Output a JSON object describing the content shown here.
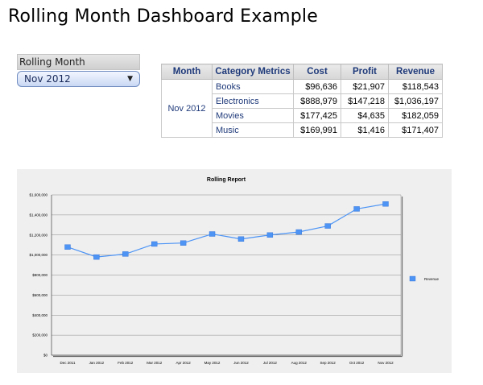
{
  "page": {
    "title": "Rolling Month Dashboard Example"
  },
  "selector": {
    "label": "Rolling Month",
    "value": "Nov 2012",
    "arrow": "▼"
  },
  "table": {
    "headers": [
      "Month",
      "Category Metrics",
      "Cost",
      "Profit",
      "Revenue"
    ],
    "month": "Nov 2012",
    "rows": [
      {
        "category": "Books",
        "cost": "$96,636",
        "profit": "$21,907",
        "revenue": "$118,543"
      },
      {
        "category": "Electronics",
        "cost": "$888,979",
        "profit": "$147,218",
        "revenue": "$1,036,197"
      },
      {
        "category": "Movies",
        "cost": "$177,425",
        "profit": "$4,635",
        "revenue": "$182,059"
      },
      {
        "category": "Music",
        "cost": "$169,991",
        "profit": "$1,416",
        "revenue": "$171,407"
      }
    ]
  },
  "colors": {
    "series": "#4d94f5",
    "header_text": "#1f3a7a",
    "chart_bg": "#efefef"
  },
  "chart_data": {
    "type": "line",
    "title": "Rolling Report",
    "xlabel": "",
    "ylabel": "",
    "categories": [
      "Dec 2011",
      "Jan 2012",
      "Feb 2012",
      "Mar 2012",
      "Apr 2012",
      "May 2012",
      "Jun 2012",
      "Jul 2012",
      "Aug 2012",
      "Sep 2012",
      "Oct 2012",
      "Nov 2012"
    ],
    "series": [
      {
        "name": "Revenue",
        "values": [
          1080000,
          980000,
          1010000,
          1110000,
          1120000,
          1210000,
          1160000,
          1200000,
          1230000,
          1290000,
          1460000,
          1510000
        ]
      }
    ],
    "ylim": [
      0,
      1600000
    ],
    "yticks": [
      "$0",
      "$200,000",
      "$400,000",
      "$600,000",
      "$800,000",
      "$1,000,000",
      "$1,200,000",
      "$1,400,000",
      "$1,600,000"
    ],
    "grid": true,
    "legend": "right"
  }
}
